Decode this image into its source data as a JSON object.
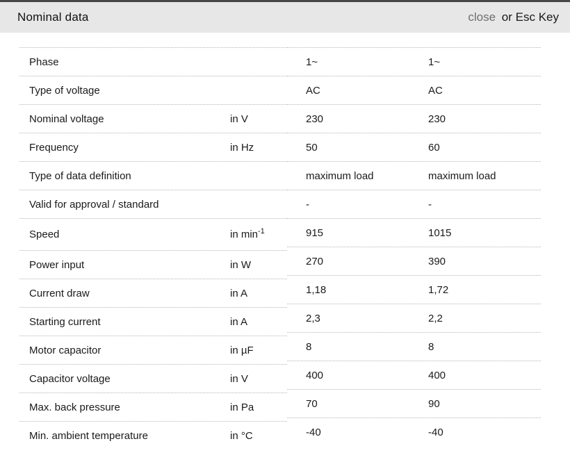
{
  "header": {
    "title": "Nominal data",
    "close_label": "close",
    "esc_label": "or Esc Key"
  },
  "colors": {
    "top_bar": "#474747",
    "header_bg": "#e7e7e7",
    "close_link": "#6f6f6f",
    "text": "#1a1a1a",
    "divider": "#b5b5b5"
  },
  "table": {
    "rows": [
      {
        "label": "Phase",
        "unit": "",
        "values": [
          "1~",
          "1~"
        ]
      },
      {
        "label": "Type of voltage",
        "unit": "",
        "values": [
          "AC",
          "AC"
        ]
      },
      {
        "label": "Nominal voltage",
        "unit": "in V",
        "values": [
          "230",
          "230"
        ]
      },
      {
        "label": "Frequency",
        "unit": "in Hz",
        "values": [
          "50",
          "60"
        ]
      },
      {
        "label": "Type of data definition",
        "unit": "",
        "values": [
          "maximum load",
          "maximum load"
        ]
      },
      {
        "label": "Valid for approval / standard",
        "unit": "",
        "values": [
          "-",
          "-"
        ]
      },
      {
        "label": "Speed",
        "unit": "in min",
        "unit_sup": "-1",
        "values": [
          "915",
          "1015"
        ]
      },
      {
        "label": "Power input",
        "unit": "in W",
        "values": [
          "270",
          "390"
        ]
      },
      {
        "label": "Current draw",
        "unit": "in A",
        "values": [
          "1,18",
          "1,72"
        ]
      },
      {
        "label": "Starting current",
        "unit": "in A",
        "values": [
          "2,3",
          "2,2"
        ]
      },
      {
        "label": "Motor capacitor",
        "unit": "in µF",
        "values": [
          "8",
          "8"
        ]
      },
      {
        "label": "Capacitor voltage",
        "unit": "in V",
        "values": [
          "400",
          "400"
        ]
      },
      {
        "label": "Max. back pressure",
        "unit": "in Pa",
        "values": [
          "70",
          "90"
        ]
      },
      {
        "label": "Min. ambient temperature",
        "unit": "in °C",
        "values": [
          "-40",
          "-40"
        ]
      }
    ]
  }
}
